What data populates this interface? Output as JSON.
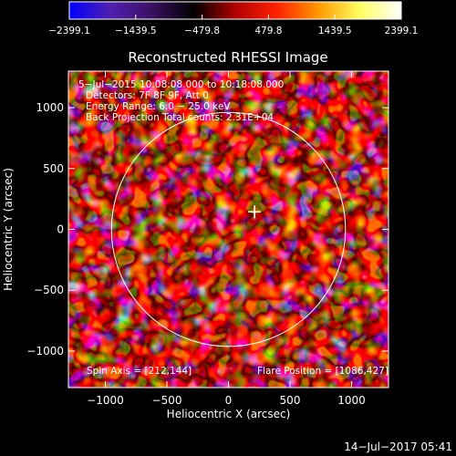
{
  "chart_data": {
    "type": "heatmap",
    "title": "Reconstructed RHESSI Image",
    "xlabel": "Heliocentric X (arcsec)",
    "ylabel": "Heliocentric Y (arcsec)",
    "xlim": [
      -1300,
      1300
    ],
    "ylim": [
      -1300,
      1300
    ],
    "x_ticks": [
      -1000,
      -500,
      0,
      500,
      1000
    ],
    "x_tick_labels": [
      "−1000",
      "−500",
      "0",
      "500",
      "1000"
    ],
    "y_ticks": [
      -1000,
      -500,
      0,
      500,
      1000
    ],
    "y_tick_labels": [
      "−1000",
      "−500",
      "0",
      "500",
      "1000"
    ],
    "colorbar": {
      "range": [
        -2399.1,
        2399.1
      ],
      "tick_values": [
        -2399.1,
        -1439.5,
        -479.8,
        479.8,
        1439.5,
        2399.1
      ],
      "tick_labels": [
        "−2399.1",
        "−1439.5",
        "−479.8",
        "479.8",
        "1439.5",
        "2399.1"
      ],
      "colors": [
        "#0000ff",
        "#5020b0",
        "#3a1060",
        "#000000",
        "#b00000",
        "#ff2000",
        "#ff9900",
        "#ffff60",
        "#ffffff"
      ]
    },
    "annotations": [
      "5−Jul−2015 10:08:08.000 to 10:18:08.000",
      "Detectors: 7F 8F 9F, Att 0",
      "Energy Range: 6.0 − 25.0 keV",
      "Back Projection    Total counts: 2.31E+04"
    ],
    "spin_axis": "Spin Axis = [212,144]",
    "flare_position": "Flare Position = [1086,427]",
    "solar_limb": {
      "center": [
        0,
        0
      ],
      "radius": 950
    },
    "marker": {
      "x": 212,
      "y": 144
    },
    "timestamp": "14−Jul−2017 05:41"
  }
}
